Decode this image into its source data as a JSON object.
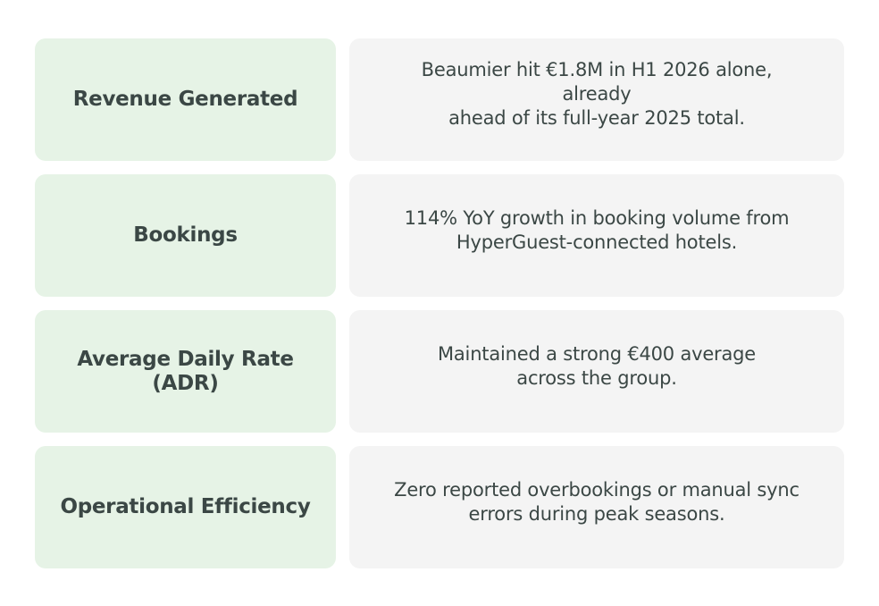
{
  "rows": [
    {
      "label": [
        "Revenue Generated"
      ],
      "description": [
        "Beaumier hit €1.8M in H1 2026 alone, already",
        "ahead of its full-year 2025 total."
      ]
    },
    {
      "label": [
        "Bookings"
      ],
      "description": [
        "114% YoY growth in booking volume from",
        "HyperGuest-connected hotels."
      ]
    },
    {
      "label": [
        "Average Daily Rate",
        "(ADR)"
      ],
      "description": [
        "Maintained a strong €400 average",
        "across the group."
      ]
    },
    {
      "label": [
        "Operational Efficiency"
      ],
      "description": [
        "Zero reported overbookings or manual sync",
        "errors during peak seasons."
      ]
    }
  ],
  "colors": {
    "label_bg": "#e6f3e6",
    "desc_bg": "#f4f4f4",
    "text": "#3b4745"
  }
}
